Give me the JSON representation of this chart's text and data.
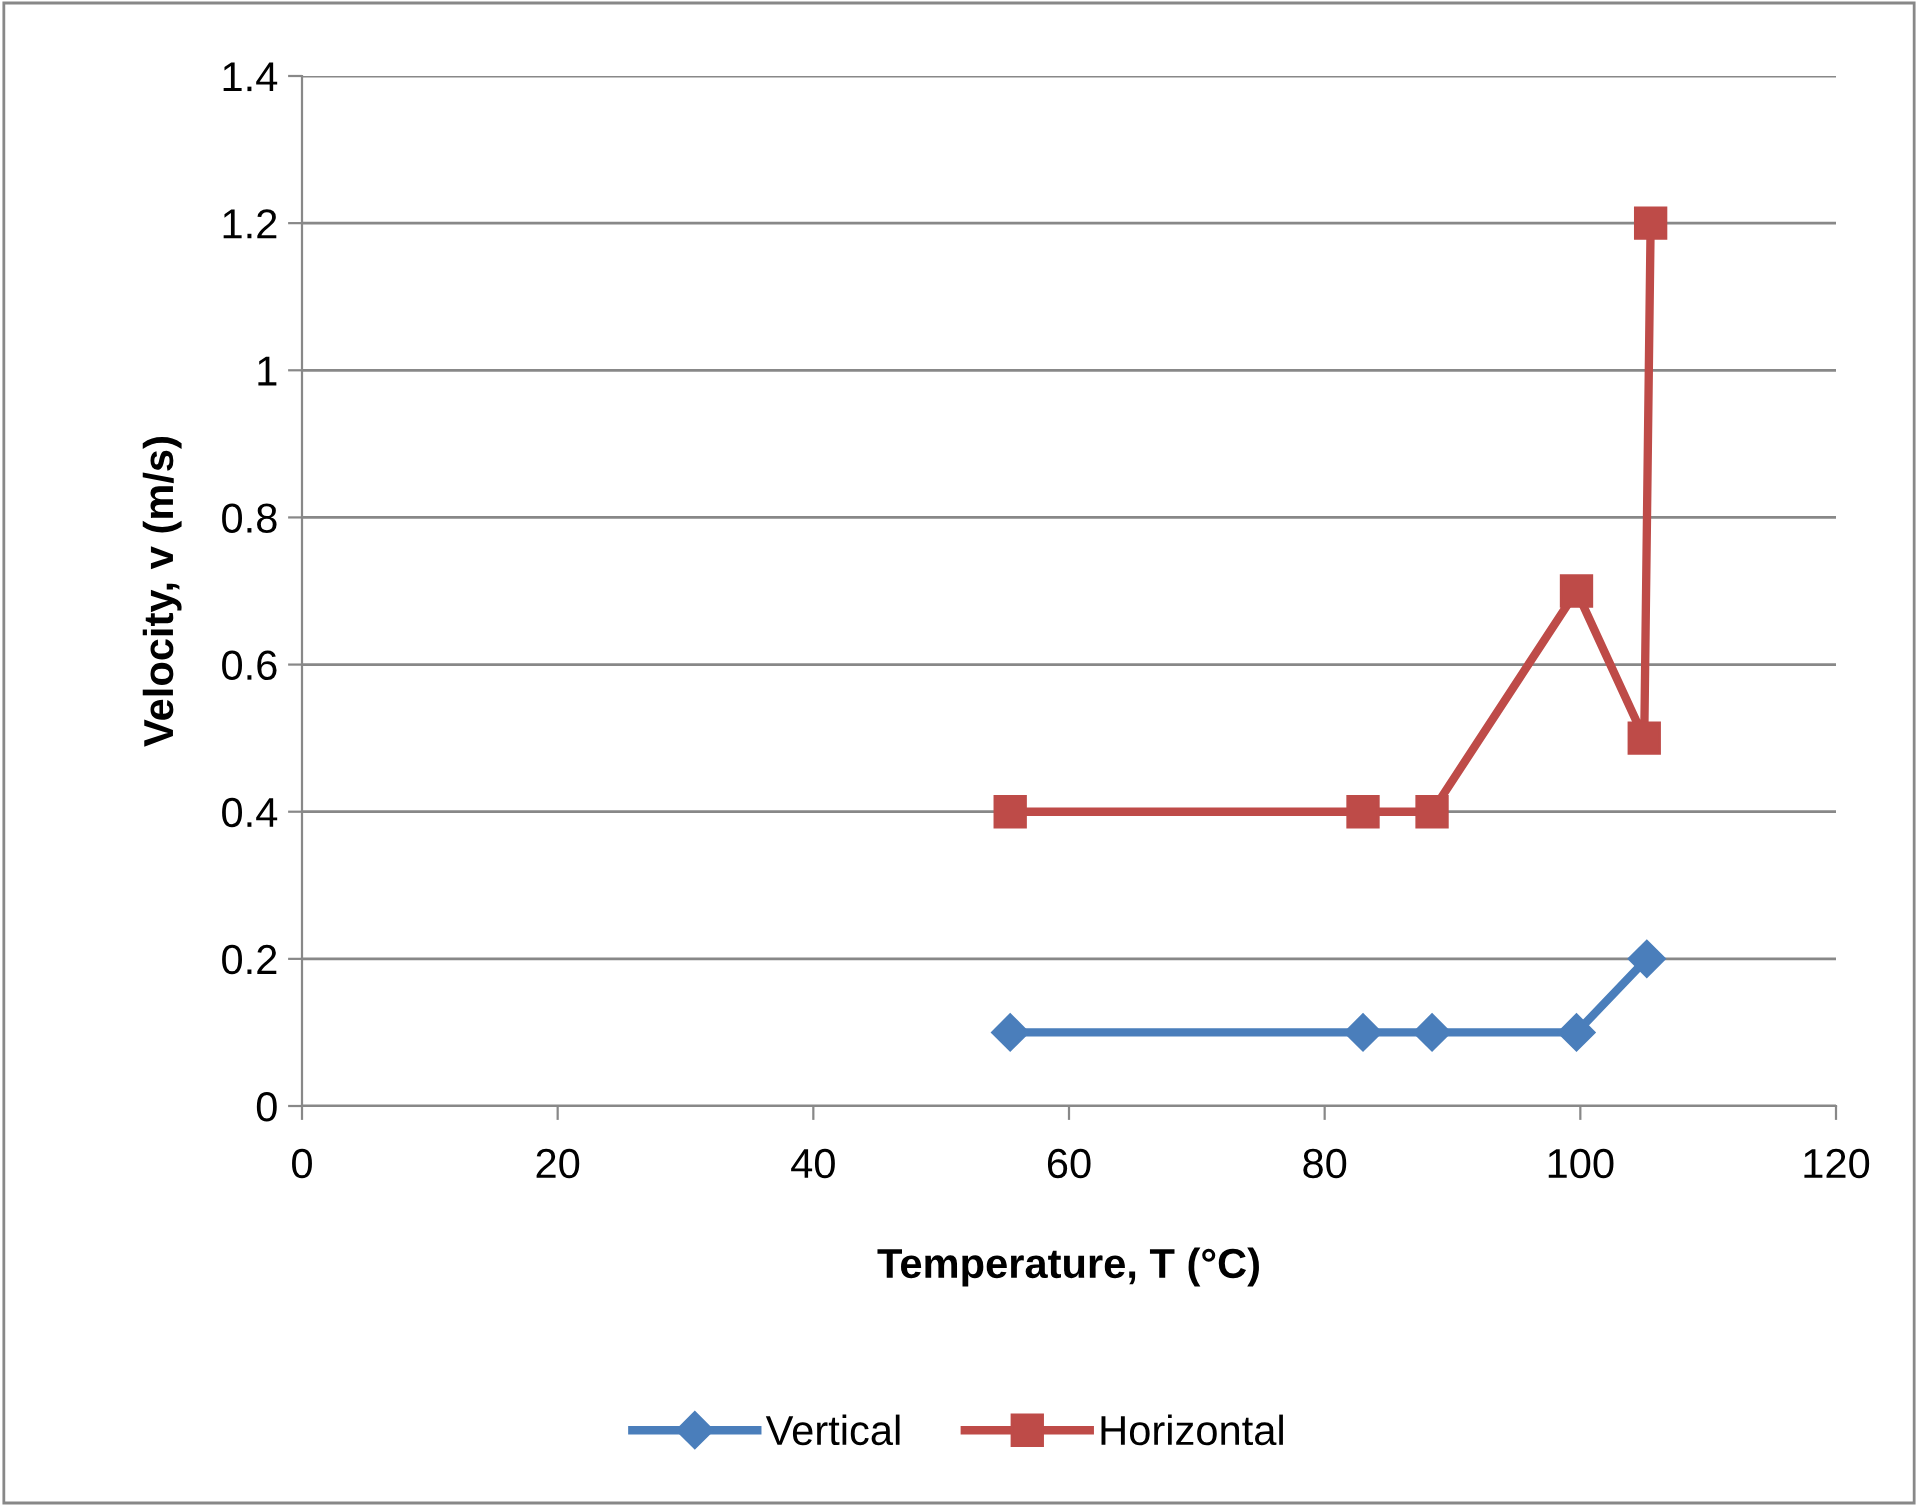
{
  "chart_data": {
    "type": "line",
    "xlabel": "Temperature, T (°C)",
    "ylabel": "Velocity, v (m/s)",
    "xlim": [
      0,
      120
    ],
    "xticks": [
      0,
      20,
      40,
      60,
      80,
      100,
      120
    ],
    "ylim": [
      0,
      1.4
    ],
    "yticks": [
      0,
      0.2,
      0.4,
      0.6,
      0.8,
      1,
      1.2,
      1.4
    ],
    "grid": "y",
    "legend": "bottom",
    "line_style": "solid",
    "series": [
      {
        "name": "Vertical",
        "color": "#4a7ebb",
        "marker": "diamond",
        "x": [
          55.4,
          83,
          88.4,
          99.7,
          105.2
        ],
        "values": [
          0.1,
          0.1,
          0.1,
          0.1,
          0.2
        ]
      },
      {
        "name": "Horizontal",
        "color": "#be4b48",
        "marker": "square",
        "x": [
          55.4,
          83,
          88.4,
          99.7,
          105,
          105.5
        ],
        "values": [
          0.4,
          0.4,
          0.4,
          0.7,
          0.5,
          1.2
        ]
      }
    ]
  }
}
